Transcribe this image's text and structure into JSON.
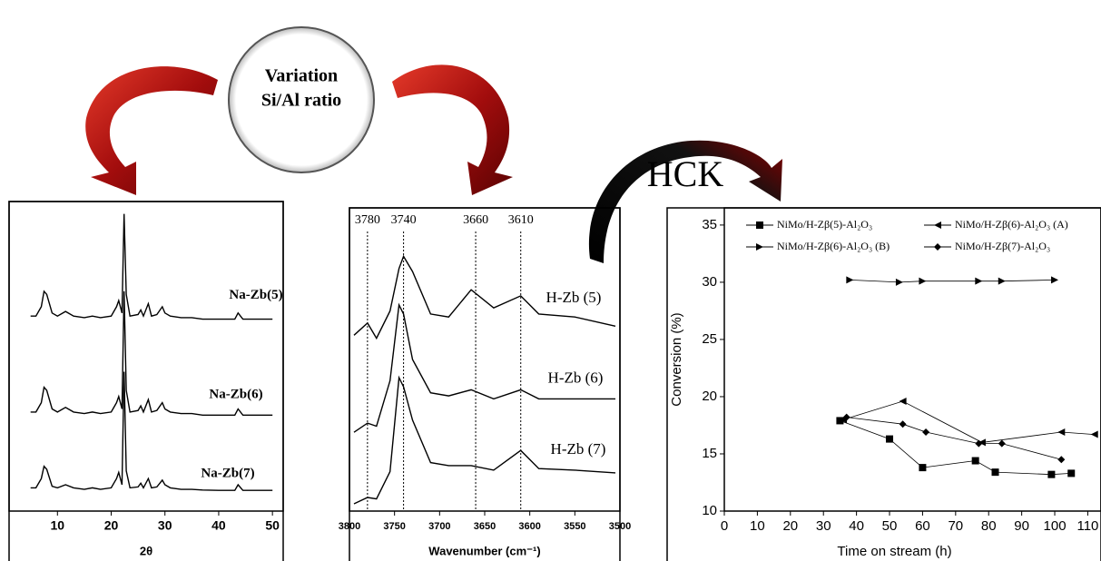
{
  "header": {
    "circle_text": [
      "Variation",
      "Si/Al ratio"
    ],
    "arrow_label": "HCK"
  },
  "chart_data": [
    {
      "type": "line",
      "x_label": "2θ",
      "x": [
        5,
        6,
        7,
        7.5,
        8,
        9,
        10,
        11.5,
        13,
        15,
        16.5,
        18,
        20,
        21,
        21.4,
        22,
        22.4,
        22.8,
        23.5,
        25,
        25.5,
        26,
        26.9,
        27.5,
        28.5,
        29.5,
        30,
        31,
        33,
        35,
        37,
        40,
        43,
        43.6,
        44.5,
        47,
        50
      ],
      "xlim": [
        1,
        52
      ],
      "xticks": [
        10,
        20,
        30,
        40,
        50
      ],
      "ylim": [
        0,
        100
      ],
      "series": [
        {
          "name": "Na-Zb(5)",
          "color": "#000000",
          "values": [
            63,
            63,
            66,
            71,
            70,
            64,
            63,
            64.5,
            63,
            62.5,
            63,
            62.5,
            63,
            66,
            68,
            64,
            96,
            70,
            63,
            63.5,
            65,
            63,
            67,
            63,
            63.5,
            66,
            64,
            63,
            62.5,
            62.5,
            62,
            62,
            62,
            64,
            62,
            62,
            62
          ]
        },
        {
          "name": "Na-Zb(6)",
          "color": "#000000",
          "values": [
            32,
            32,
            35,
            40,
            39,
            33,
            32,
            33.5,
            32,
            31.5,
            32,
            31.5,
            32,
            35,
            37,
            33,
            71,
            39,
            32,
            32.5,
            34,
            32,
            36,
            32,
            32.5,
            35,
            33,
            32,
            31.5,
            31.5,
            31,
            31,
            31,
            33,
            31,
            31,
            31
          ]
        },
        {
          "name": "Na-Zb(7)",
          "color": "#000000",
          "values": [
            7.5,
            7.5,
            10.5,
            14.5,
            13.5,
            8,
            7.5,
            8.5,
            7.5,
            7,
            7.5,
            7,
            7.5,
            10.5,
            12.5,
            8.5,
            45,
            13,
            7.5,
            7.8,
            9,
            7.5,
            10.5,
            7.5,
            7.8,
            10,
            8.5,
            7.5,
            7,
            7,
            6.8,
            6.7,
            6.7,
            8.5,
            6.7,
            6.7,
            6.7
          ]
        }
      ]
    },
    {
      "type": "line",
      "x_label": "Wavenumber (cm⁻¹)",
      "x": [
        3795,
        3780,
        3770,
        3755,
        3745,
        3740,
        3730,
        3710,
        3690,
        3665,
        3640,
        3610,
        3590,
        3550,
        3505
      ],
      "xlim": [
        3800,
        3500
      ],
      "xticks": [
        3800,
        3750,
        3700,
        3650,
        3600,
        3550,
        3500
      ],
      "ylim": [
        0,
        100
      ],
      "reference_lines": [
        3780,
        3740,
        3660,
        3610
      ],
      "series": [
        {
          "name": "H-Zb (5)",
          "color": "#000000",
          "values": [
            58,
            62,
            57,
            66,
            80,
            84,
            79,
            65,
            64,
            73,
            67,
            71,
            65,
            64,
            61
          ]
        },
        {
          "name": "H-Zb (6)",
          "color": "#000000",
          "values": [
            26,
            29,
            28,
            43,
            68,
            65,
            50,
            39,
            38,
            40,
            37,
            40,
            37,
            37,
            37
          ]
        },
        {
          "name": "H-Zb (7)",
          "color": "#000000",
          "values": [
            2.4,
            4.5,
            4,
            13,
            44,
            41,
            30,
            16,
            15,
            15,
            13.5,
            20,
            14,
            13.5,
            12.6
          ]
        }
      ]
    },
    {
      "type": "line",
      "x_label": "Time on stream (h)",
      "y_label": "Conversion (%)",
      "xlim": [
        0,
        114
      ],
      "xticks": [
        0,
        10,
        20,
        30,
        40,
        50,
        60,
        70,
        80,
        90,
        100,
        110
      ],
      "ylim": [
        10,
        36.5
      ],
      "yticks": [
        10,
        15,
        20,
        25,
        30,
        35
      ],
      "legend": "top",
      "series": [
        {
          "name": "NiMo/H-Zβ(5)-Al₂O₃",
          "color": "#000000",
          "marker": "square",
          "x": [
            35,
            50,
            60,
            76,
            82,
            99,
            105
          ],
          "values": [
            17.9,
            16.3,
            13.8,
            14.4,
            13.4,
            13.2,
            13.3
          ]
        },
        {
          "name": "NiMo/H-Zβ(6)-Al₂O₃ (A)",
          "color": "#000000",
          "marker": "triangle-left",
          "x": [
            36,
            54,
            78,
            102,
            112
          ],
          "values": [
            18,
            19.6,
            16,
            16.9,
            16.7
          ]
        },
        {
          "name": "NiMo/H-Zβ(6)-Al₂O₃ (B)",
          "color": "#000000",
          "marker": "triangle-right",
          "x": [
            38,
            53,
            60,
            77,
            84,
            100
          ],
          "values": [
            30.2,
            30,
            30.1,
            30.1,
            30.1,
            30.2
          ]
        },
        {
          "name": "NiMo/H-Zβ(7)-Al₂O₃",
          "color": "#000000",
          "marker": "diamond",
          "x": [
            37,
            54,
            61,
            77,
            84,
            102
          ],
          "values": [
            18.2,
            17.6,
            16.9,
            15.9,
            15.9,
            14.5
          ]
        }
      ]
    }
  ]
}
